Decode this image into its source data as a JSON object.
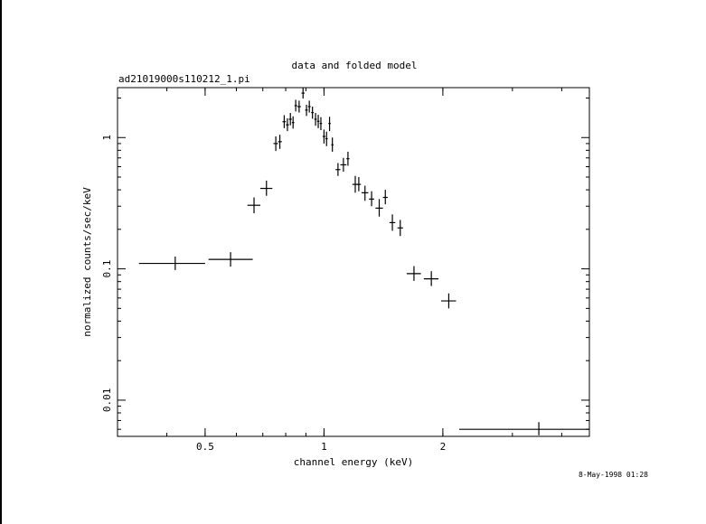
{
  "chart_data": {
    "type": "scatter",
    "title": "data and folded model",
    "subtitle": "ad21019000s110212_1.pi",
    "xlabel": "channel energy (keV)",
    "ylabel": "normalized counts/sec/keV",
    "timestamp": "8-May-1998 01:28",
    "xscale": "log",
    "yscale": "log",
    "xlim": [
      0.3,
      4.7
    ],
    "ylim": [
      0.0053,
      2.4
    ],
    "x_ticks": [
      {
        "value": 0.5,
        "label": "0.5"
      },
      {
        "value": 1,
        "label": "1"
      },
      {
        "value": 2,
        "label": "2"
      }
    ],
    "y_ticks": [
      {
        "value": 0.01,
        "label": "0.01"
      },
      {
        "value": 0.1,
        "label": "0.1"
      },
      {
        "value": 1,
        "label": "1"
      }
    ],
    "points": [
      {
        "x": 0.42,
        "xlo": 0.34,
        "xhi": 0.5,
        "y": 0.11,
        "ylo": 0.098,
        "yhi": 0.124
      },
      {
        "x": 0.58,
        "xlo": 0.51,
        "xhi": 0.66,
        "y": 0.118,
        "ylo": 0.104,
        "yhi": 0.134
      },
      {
        "x": 0.665,
        "xlo": 0.64,
        "xhi": 0.69,
        "y": 0.305,
        "ylo": 0.265,
        "yhi": 0.35
      },
      {
        "x": 0.715,
        "xlo": 0.69,
        "xhi": 0.74,
        "y": 0.41,
        "ylo": 0.36,
        "yhi": 0.47
      },
      {
        "x": 0.755,
        "xlo": 0.745,
        "xhi": 0.765,
        "y": 0.9,
        "ylo": 0.79,
        "yhi": 1.02
      },
      {
        "x": 0.773,
        "xlo": 0.765,
        "xhi": 0.782,
        "y": 0.93,
        "ylo": 0.82,
        "yhi": 1.05
      },
      {
        "x": 0.793,
        "xlo": 0.785,
        "xhi": 0.801,
        "y": 1.32,
        "ylo": 1.18,
        "yhi": 1.48
      },
      {
        "x": 0.808,
        "xlo": 0.801,
        "xhi": 0.815,
        "y": 1.25,
        "ylo": 1.12,
        "yhi": 1.4
      },
      {
        "x": 0.822,
        "xlo": 0.815,
        "xhi": 0.829,
        "y": 1.38,
        "ylo": 1.24,
        "yhi": 1.54
      },
      {
        "x": 0.835,
        "xlo": 0.829,
        "xhi": 0.841,
        "y": 1.3,
        "ylo": 1.17,
        "yhi": 1.45
      },
      {
        "x": 0.848,
        "xlo": 0.842,
        "xhi": 0.855,
        "y": 1.75,
        "ylo": 1.58,
        "yhi": 1.94
      },
      {
        "x": 0.865,
        "xlo": 0.856,
        "xhi": 0.874,
        "y": 1.72,
        "ylo": 1.55,
        "yhi": 1.91
      },
      {
        "x": 0.885,
        "xlo": 0.877,
        "xhi": 0.893,
        "y": 2.18,
        "ylo": 1.98,
        "yhi": 2.38
      },
      {
        "x": 0.903,
        "xlo": 0.896,
        "xhi": 0.91,
        "y": 1.62,
        "ylo": 1.46,
        "yhi": 1.78
      },
      {
        "x": 0.918,
        "xlo": 0.911,
        "xhi": 0.925,
        "y": 1.72,
        "ylo": 1.55,
        "yhi": 1.91
      },
      {
        "x": 0.935,
        "xlo": 0.928,
        "xhi": 0.942,
        "y": 1.55,
        "ylo": 1.39,
        "yhi": 1.72
      },
      {
        "x": 0.952,
        "xlo": 0.945,
        "xhi": 0.959,
        "y": 1.38,
        "ylo": 1.23,
        "yhi": 1.54
      },
      {
        "x": 0.967,
        "xlo": 0.96,
        "xhi": 0.974,
        "y": 1.33,
        "ylo": 1.18,
        "yhi": 1.49
      },
      {
        "x": 0.982,
        "xlo": 0.975,
        "xhi": 0.989,
        "y": 1.28,
        "ylo": 1.14,
        "yhi": 1.43
      },
      {
        "x": 1.0,
        "xlo": 0.992,
        "xhi": 1.008,
        "y": 1.02,
        "ylo": 0.9,
        "yhi": 1.15
      },
      {
        "x": 1.015,
        "xlo": 1.008,
        "xhi": 1.022,
        "y": 0.98,
        "ylo": 0.86,
        "yhi": 1.11
      },
      {
        "x": 1.033,
        "xlo": 1.026,
        "xhi": 1.04,
        "y": 1.28,
        "ylo": 1.12,
        "yhi": 1.44
      },
      {
        "x": 1.05,
        "xlo": 1.043,
        "xhi": 1.057,
        "y": 0.88,
        "ylo": 0.78,
        "yhi": 1.0
      },
      {
        "x": 1.085,
        "xlo": 1.07,
        "xhi": 1.1,
        "y": 0.57,
        "ylo": 0.51,
        "yhi": 0.64
      },
      {
        "x": 1.12,
        "xlo": 1.1,
        "xhi": 1.14,
        "y": 0.62,
        "ylo": 0.55,
        "yhi": 0.7
      },
      {
        "x": 1.15,
        "xlo": 1.14,
        "xhi": 1.16,
        "y": 0.69,
        "ylo": 0.61,
        "yhi": 0.78
      },
      {
        "x": 1.2,
        "xlo": 1.18,
        "xhi": 1.22,
        "y": 0.44,
        "ylo": 0.38,
        "yhi": 0.51
      },
      {
        "x": 1.225,
        "xlo": 1.21,
        "xhi": 1.24,
        "y": 0.44,
        "ylo": 0.39,
        "yhi": 0.5
      },
      {
        "x": 1.27,
        "xlo": 1.245,
        "xhi": 1.295,
        "y": 0.38,
        "ylo": 0.33,
        "yhi": 0.43
      },
      {
        "x": 1.32,
        "xlo": 1.3,
        "xhi": 1.34,
        "y": 0.34,
        "ylo": 0.3,
        "yhi": 0.39
      },
      {
        "x": 1.38,
        "xlo": 1.35,
        "xhi": 1.41,
        "y": 0.29,
        "ylo": 0.25,
        "yhi": 0.34
      },
      {
        "x": 1.43,
        "xlo": 1.41,
        "xhi": 1.45,
        "y": 0.35,
        "ylo": 0.31,
        "yhi": 0.4
      },
      {
        "x": 1.49,
        "xlo": 1.465,
        "xhi": 1.515,
        "y": 0.225,
        "ylo": 0.195,
        "yhi": 0.26
      },
      {
        "x": 1.56,
        "xlo": 1.535,
        "xhi": 1.585,
        "y": 0.205,
        "ylo": 0.178,
        "yhi": 0.236
      },
      {
        "x": 1.69,
        "xlo": 1.62,
        "xhi": 1.76,
        "y": 0.092,
        "ylo": 0.081,
        "yhi": 0.105
      },
      {
        "x": 1.87,
        "xlo": 1.79,
        "xhi": 1.95,
        "y": 0.084,
        "ylo": 0.074,
        "yhi": 0.096
      },
      {
        "x": 2.07,
        "xlo": 1.98,
        "xhi": 2.16,
        "y": 0.057,
        "ylo": 0.05,
        "yhi": 0.065
      },
      {
        "x": 3.5,
        "xlo": 2.2,
        "xhi": 4.7,
        "y": 0.006,
        "ylo": 0.0054,
        "yhi": 0.0068
      }
    ]
  }
}
